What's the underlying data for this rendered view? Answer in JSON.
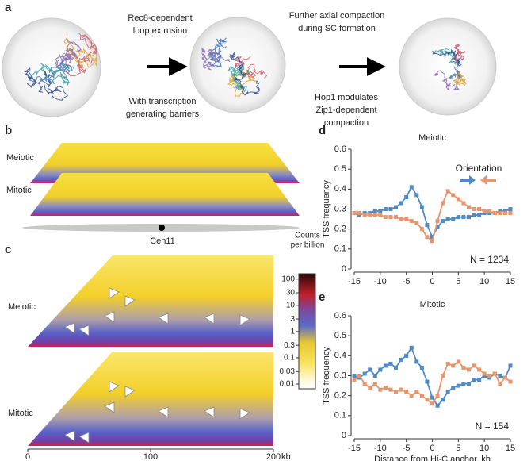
{
  "panels": {
    "a": {
      "label": "a",
      "caption_1": [
        "Rec8-dependent",
        "loop extrusion"
      ],
      "caption_2": [
        "With transcription",
        "generating barriers"
      ],
      "caption_3": [
        "Further axial compaction",
        "during SC formation"
      ],
      "caption_4": [
        "Hop1 modulates",
        "Zip1-dependent",
        "compaction"
      ]
    },
    "b": {
      "label": "b",
      "rows": [
        "Meiotic",
        "Mitotic"
      ],
      "centromere": "Cen11"
    },
    "c": {
      "label": "c",
      "rows": [
        "Meiotic",
        "Mitotic"
      ],
      "xlim": [
        0,
        200
      ],
      "xticks": [
        0,
        100,
        200
      ],
      "x_unit": "kb",
      "colorbar": {
        "title": [
          "Counts",
          "per billion"
        ],
        "log": true,
        "lim": [
          0.0066,
          160
        ],
        "ticks": [
          100,
          30,
          10,
          3,
          1,
          0.3,
          0.1,
          0.03,
          0.01
        ]
      }
    }
  },
  "chart_data": [
    {
      "type": "line",
      "panel": "d",
      "title": "Meiotic",
      "ylabel": "TSS frequency",
      "xlim": [
        -15,
        15
      ],
      "xticks": [
        -15,
        -10,
        -5,
        0,
        5,
        10,
        15
      ],
      "ylim": [
        0,
        0.6
      ],
      "yticks": [
        0,
        0.1,
        0.2,
        0.3,
        0.4,
        0.5,
        0.6
      ],
      "legend": true,
      "legend_title": "Orientation",
      "legend_loc": "upper right",
      "annotation": "N = 1234",
      "x": [
        -15,
        -14,
        -13,
        -12,
        -11,
        -10,
        -9,
        -8,
        -7,
        -6,
        -5,
        -4,
        -3,
        -2,
        -1,
        0,
        1,
        2,
        3,
        4,
        5,
        6,
        7,
        8,
        9,
        10,
        11,
        12,
        13,
        14,
        15
      ],
      "series": [
        {
          "color": "#4d8ac6",
          "direction": "right",
          "values": [
            0.28,
            0.27,
            0.28,
            0.28,
            0.29,
            0.29,
            0.3,
            0.3,
            0.31,
            0.33,
            0.36,
            0.41,
            0.37,
            0.31,
            0.22,
            0.16,
            0.21,
            0.24,
            0.25,
            0.25,
            0.26,
            0.26,
            0.26,
            0.27,
            0.27,
            0.28,
            0.28,
            0.28,
            0.29,
            0.29,
            0.3
          ]
        },
        {
          "color": "#e7956d",
          "direction": "left",
          "values": [
            0.28,
            0.28,
            0.27,
            0.27,
            0.27,
            0.27,
            0.26,
            0.26,
            0.26,
            0.25,
            0.25,
            0.24,
            0.23,
            0.2,
            0.16,
            0.14,
            0.24,
            0.33,
            0.39,
            0.37,
            0.35,
            0.33,
            0.31,
            0.3,
            0.3,
            0.29,
            0.29,
            0.28,
            0.28,
            0.28,
            0.28
          ]
        }
      ]
    },
    {
      "type": "line",
      "panel": "e",
      "title": "Mitotic",
      "ylabel": "TSS frequency",
      "xlabel": "Distance from Hi-C anchor, kb",
      "xlim": [
        -15,
        15
      ],
      "xticks": [
        -15,
        -10,
        -5,
        0,
        5,
        10,
        15
      ],
      "ylim": [
        0,
        0.6
      ],
      "yticks": [
        0,
        0.1,
        0.2,
        0.3,
        0.4,
        0.5,
        0.6
      ],
      "legend": false,
      "annotation": "N = 154",
      "x": [
        -15,
        -14,
        -13,
        -12,
        -11,
        -10,
        -9,
        -8,
        -7,
        -6,
        -5,
        -4,
        -3,
        -2,
        -1,
        0,
        1,
        2,
        3,
        4,
        5,
        6,
        7,
        8,
        9,
        10,
        11,
        12,
        13,
        14,
        15
      ],
      "series": [
        {
          "color": "#4d8ac6",
          "values": [
            0.3,
            0.29,
            0.31,
            0.33,
            0.3,
            0.33,
            0.35,
            0.36,
            0.34,
            0.38,
            0.4,
            0.44,
            0.37,
            0.34,
            0.27,
            0.19,
            0.15,
            0.18,
            0.22,
            0.24,
            0.25,
            0.26,
            0.26,
            0.28,
            0.28,
            0.3,
            0.29,
            0.31,
            0.3,
            0.29,
            0.35
          ]
        },
        {
          "color": "#e7956d",
          "values": [
            0.28,
            0.3,
            0.26,
            0.24,
            0.26,
            0.23,
            0.24,
            0.23,
            0.22,
            0.23,
            0.22,
            0.2,
            0.22,
            0.2,
            0.18,
            0.16,
            0.2,
            0.3,
            0.36,
            0.35,
            0.37,
            0.34,
            0.33,
            0.35,
            0.33,
            0.31,
            0.3,
            0.31,
            0.26,
            0.29,
            0.27
          ]
        }
      ]
    }
  ]
}
